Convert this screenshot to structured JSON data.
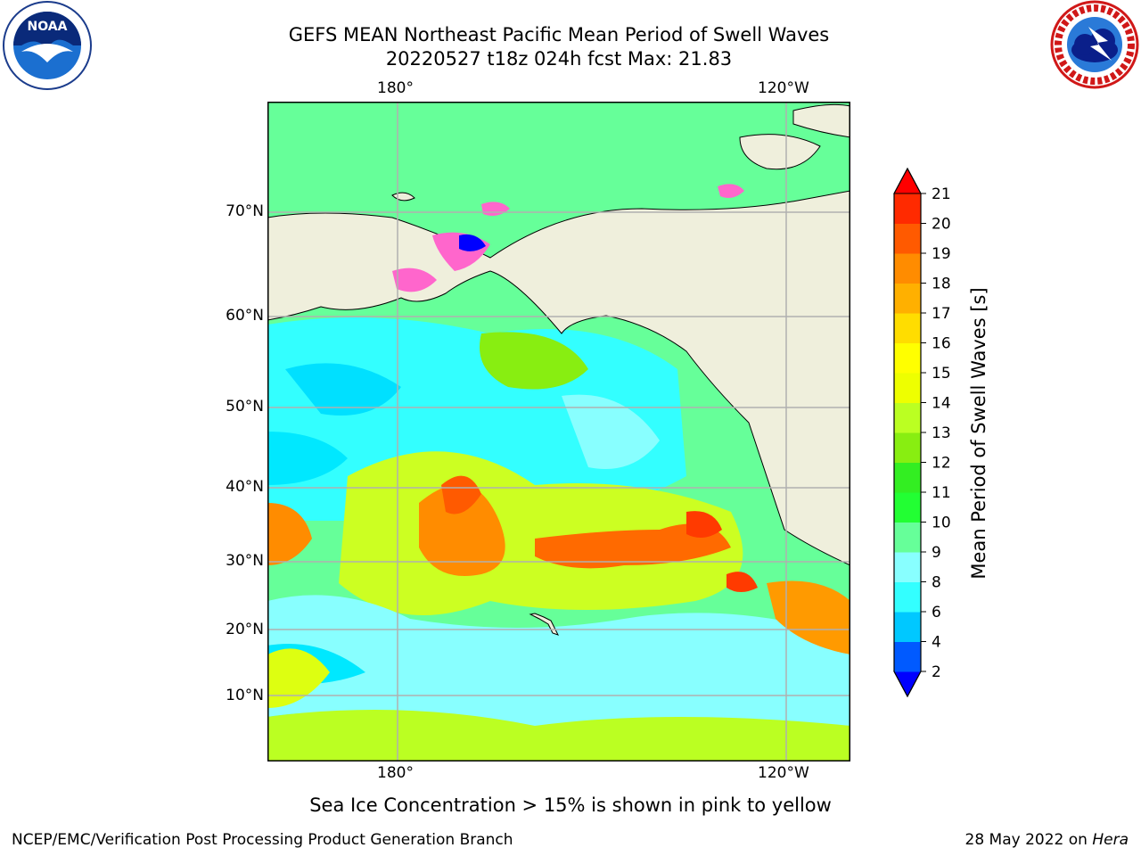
{
  "title_line1": "GEFS MEAN Northeast Pacific Mean Period of Swell Waves",
  "title_line2": "20220527 t18z 024h fcst   Max: 21.83",
  "colorbar": {
    "label": "Mean Period of Swell Waves [s]",
    "ticks": [
      "21",
      "20",
      "19",
      "18",
      "17",
      "16",
      "15",
      "14",
      "13",
      "12",
      "11",
      "10",
      "9",
      "8",
      "6",
      "4",
      "2"
    ],
    "colors": [
      "#0000ff",
      "#005aff",
      "#00c8ff",
      "#33ffff",
      "#88ffff",
      "#66ff99",
      "#22ff33",
      "#33ee22",
      "#88ee11",
      "#bbff22",
      "#eeff00",
      "#ffff00",
      "#ffdd00",
      "#ffb000",
      "#ff8c00",
      "#ff5a00",
      "#ff2a00",
      "#ff0000"
    ]
  },
  "map": {
    "lon_labels": {
      "left": "180°",
      "right": "120°W"
    },
    "lat_labels": [
      "70°N",
      "60°N",
      "50°N",
      "40°N",
      "30°N",
      "20°N",
      "10°N"
    ],
    "land_color": "#efefdc"
  },
  "note": "Sea Ice Concentration > 15% is shown in pink to yellow",
  "footer": {
    "left": "NCEP/EMC/Verification Post Processing Product Generation Branch",
    "date": "28 May 2022 on",
    "machine": "Hera"
  },
  "logos": {
    "noaa_text": "NOAA"
  }
}
